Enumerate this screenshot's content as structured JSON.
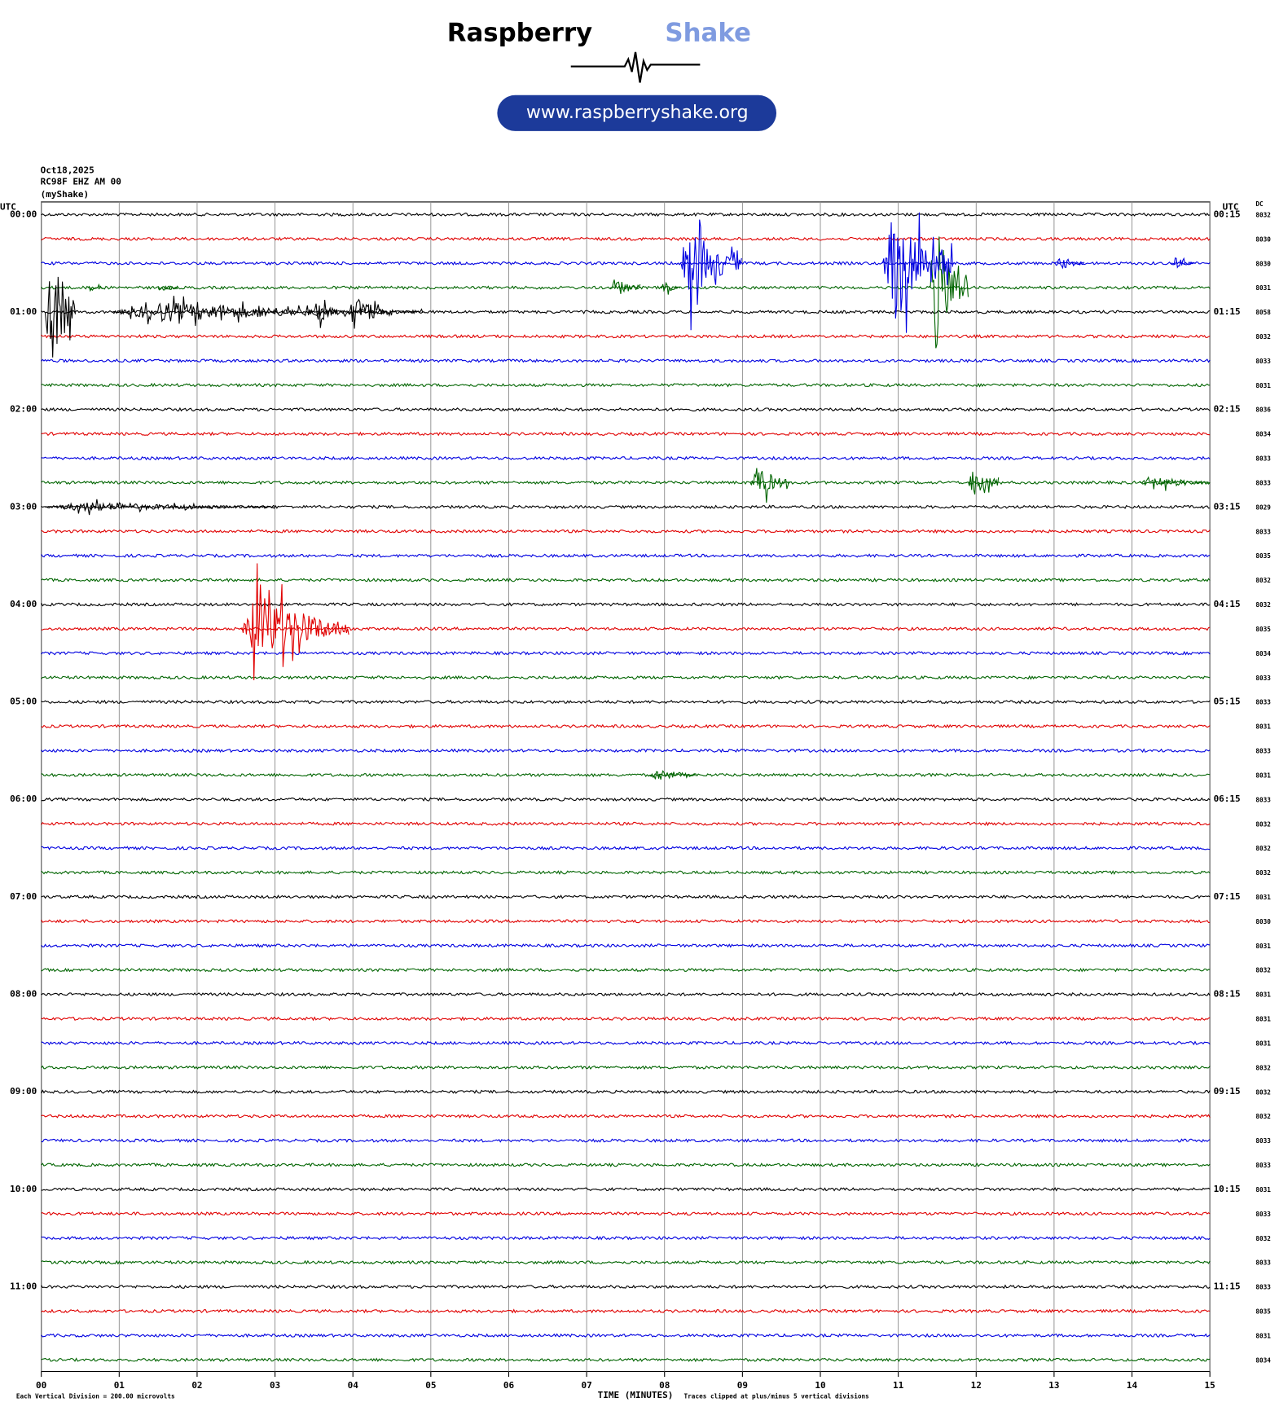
{
  "logo": {
    "word1": "Raspberry",
    "word2": "Shake",
    "url": "www.raspberryshake.org"
  },
  "chart_data": {
    "type": "helicorder",
    "date": "Oct18,2025",
    "station": "RC98F EHZ AM 00",
    "network": "(myShake)",
    "left_axis_title": "UTC",
    "right_axis_title": "UTC",
    "dc_title": "DC",
    "xlabel": "TIME (MINUTES)",
    "scale_note": "Each Vertical Division =  200.00 microvolts",
    "clip_note": "Traces clipped at plus/minus 5 vertical divisions",
    "xlim": [
      0,
      15
    ],
    "xticks": [
      {
        "value": 0,
        "label": "00"
      },
      {
        "value": 1,
        "label": "01"
      },
      {
        "value": 2,
        "label": "02"
      },
      {
        "value": 3,
        "label": "03"
      },
      {
        "value": 4,
        "label": "04"
      },
      {
        "value": 5,
        "label": "05"
      },
      {
        "value": 6,
        "label": "06"
      },
      {
        "value": 7,
        "label": "07"
      },
      {
        "value": 8,
        "label": "08"
      },
      {
        "value": 9,
        "label": "09"
      },
      {
        "value": 10,
        "label": "10"
      },
      {
        "value": 11,
        "label": "11"
      },
      {
        "value": 12,
        "label": "12"
      },
      {
        "value": 13,
        "label": "13"
      },
      {
        "value": 14,
        "label": "14"
      },
      {
        "value": 15,
        "label": "15"
      }
    ],
    "trace_colors": [
      "#000000",
      "#e00000",
      "#0000e0",
      "#006400"
    ],
    "hour_labels_left": [
      "00:00",
      "01:00",
      "02:00",
      "03:00",
      "04:00",
      "05:00",
      "06:00",
      "07:00",
      "08:00",
      "09:00",
      "10:00",
      "11:00"
    ],
    "hour_labels_right": [
      "00:15",
      "01:15",
      "02:15",
      "03:15",
      "04:15",
      "05:15",
      "06:15",
      "07:15",
      "08:15",
      "09:15",
      "10:15",
      "11:15"
    ],
    "dc": [
      8032,
      8030,
      8030,
      8031,
      8058,
      8032,
      8033,
      8031,
      8036,
      8034,
      8033,
      8033,
      8029,
      8033,
      8035,
      8032,
      8032,
      8035,
      8034,
      8033,
      8033,
      8031,
      8033,
      8031,
      8033,
      8032,
      8032,
      8032,
      8031,
      8030,
      8031,
      8032,
      8031,
      8031,
      8031,
      8032,
      8032,
      8032,
      8033,
      8033,
      8031,
      8033,
      8032,
      8033,
      8033,
      8035,
      8031,
      8034
    ],
    "events": [
      {
        "row": 4,
        "start": 0.05,
        "end": 0.45,
        "amplitude": 5
      },
      {
        "row": 4,
        "start": 0.9,
        "end": 4.9,
        "amplitude": 0.8
      },
      {
        "row": 4,
        "start": 3.5,
        "end": 3.8,
        "amplitude": 1.3
      },
      {
        "row": 4,
        "start": 3.95,
        "end": 4.4,
        "amplitude": 1.6
      },
      {
        "row": 3,
        "start": 0.6,
        "end": 0.8,
        "amplitude": 0.4
      },
      {
        "row": 3,
        "start": 1.5,
        "end": 1.75,
        "amplitude": 0.4
      },
      {
        "row": 3,
        "start": 7.3,
        "end": 7.7,
        "amplitude": 0.8
      },
      {
        "row": 3,
        "start": 7.95,
        "end": 8.2,
        "amplitude": 0.5
      },
      {
        "row": 3,
        "start": 11.4,
        "end": 11.9,
        "amplitude": 5
      },
      {
        "row": 2,
        "start": 8.2,
        "end": 9.0,
        "amplitude": 3
      },
      {
        "row": 2,
        "start": 10.8,
        "end": 11.7,
        "amplitude": 5
      },
      {
        "row": 2,
        "start": 13.0,
        "end": 13.4,
        "amplitude": 0.6
      },
      {
        "row": 2,
        "start": 14.5,
        "end": 14.8,
        "amplitude": 0.5
      },
      {
        "row": 11,
        "start": 9.1,
        "end": 9.6,
        "amplitude": 1.5
      },
      {
        "row": 11,
        "start": 11.9,
        "end": 12.3,
        "amplitude": 1.5
      },
      {
        "row": 11,
        "start": 14.1,
        "end": 15.0,
        "amplitude": 0.6
      },
      {
        "row": 12,
        "start": 0.05,
        "end": 3.0,
        "amplitude": 0.4
      },
      {
        "row": 17,
        "start": 2.55,
        "end": 3.95,
        "amplitude": 3
      },
      {
        "row": 23,
        "start": 7.8,
        "end": 8.4,
        "amplitude": 0.6
      }
    ]
  }
}
